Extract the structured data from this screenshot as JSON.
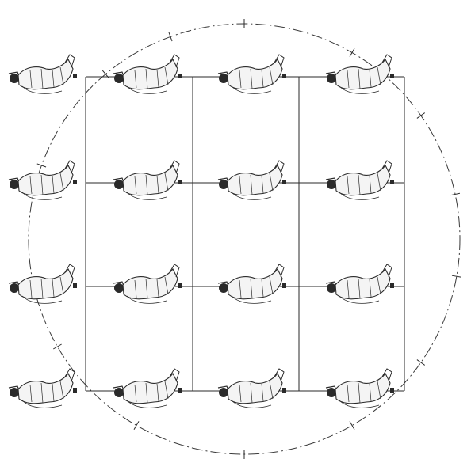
{
  "figure": {
    "kind": "ritual dance formation diagram (woodblock style)",
    "grid": {
      "rows": 4,
      "columns": 4
    },
    "ink_color": "#2a2a2a",
    "background": "#ffffff"
  },
  "direction_labels": {
    "top": "",
    "bottom": "",
    "left": "",
    "right": ""
  },
  "dancers": [
    {
      "row": 1,
      "col": 1,
      "facing": "right"
    },
    {
      "row": 1,
      "col": 2,
      "facing": "right"
    },
    {
      "row": 1,
      "col": 3,
      "facing": "right"
    },
    {
      "row": 1,
      "col": 4,
      "facing": "right"
    },
    {
      "row": 2,
      "col": 1,
      "facing": "right"
    },
    {
      "row": 2,
      "col": 2,
      "facing": "right"
    },
    {
      "row": 2,
      "col": 3,
      "facing": "right"
    },
    {
      "row": 2,
      "col": 4,
      "facing": "right"
    },
    {
      "row": 3,
      "col": 1,
      "facing": "right"
    },
    {
      "row": 3,
      "col": 2,
      "facing": "right"
    },
    {
      "row": 3,
      "col": 3,
      "facing": "right"
    },
    {
      "row": 3,
      "col": 4,
      "facing": "right"
    },
    {
      "row": 4,
      "col": 1,
      "facing": "right"
    },
    {
      "row": 4,
      "col": 2,
      "facing": "right"
    },
    {
      "row": 4,
      "col": 3,
      "facing": "right"
    },
    {
      "row": 4,
      "col": 4,
      "facing": "right"
    }
  ]
}
